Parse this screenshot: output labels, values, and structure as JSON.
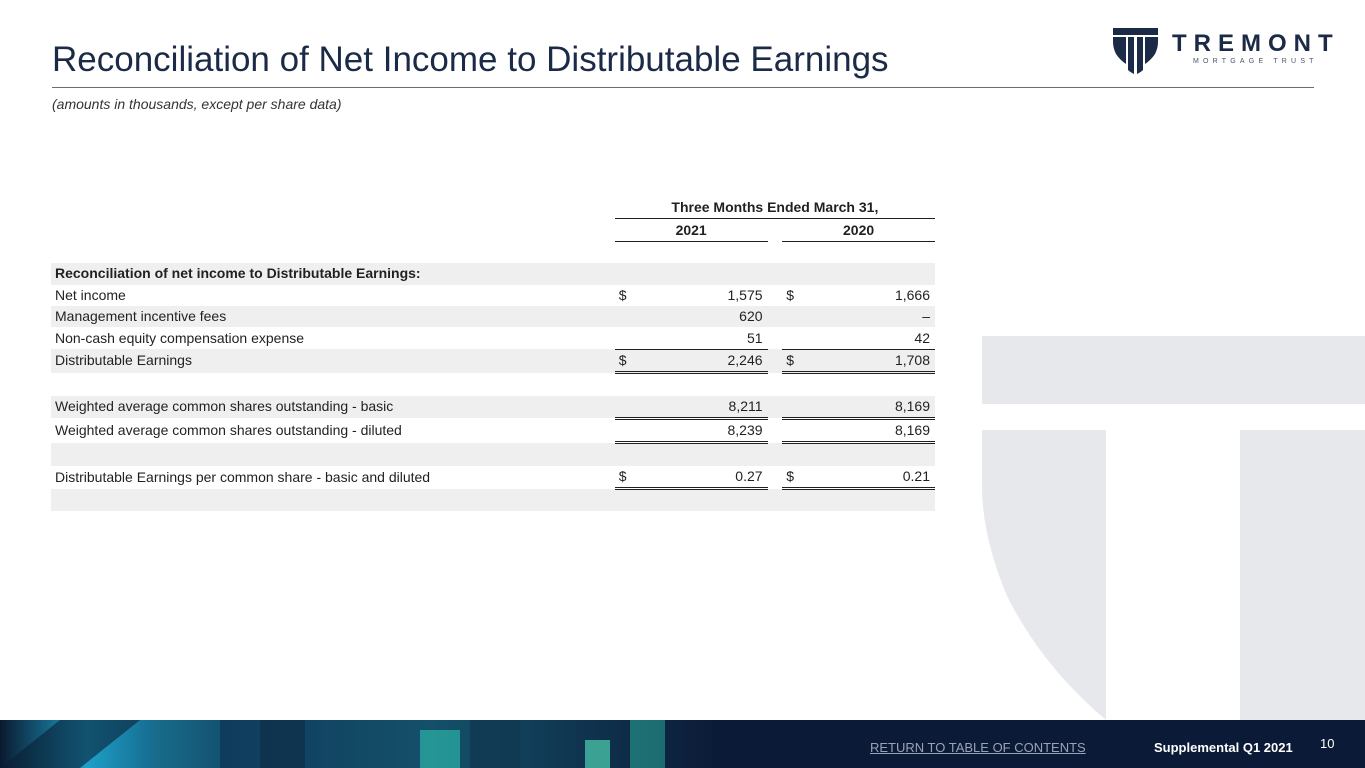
{
  "header": {
    "title": "Reconciliation of Net Income to Distributable Earnings",
    "subtitle": "(amounts in thousands, except per share data)"
  },
  "logo": {
    "name": "TREMONT",
    "tagline": "MORTGAGE TRUST",
    "color": "#1b2a47"
  },
  "table": {
    "period_header": "Three Months Ended March 31,",
    "years": [
      "2021",
      "2020"
    ],
    "section_header": "Reconciliation of net income to Distributable Earnings:",
    "rows": [
      {
        "label": "Net income",
        "cur": "$",
        "v2021": "1,575",
        "v2020": "1,666"
      },
      {
        "label": "Management incentive fees",
        "cur": "",
        "v2021": "620",
        "v2020": "–"
      },
      {
        "label": "Non-cash equity compensation expense",
        "cur": "",
        "v2021": "51",
        "v2020": "42"
      },
      {
        "label": "Distributable Earnings",
        "cur": "$",
        "v2021": "2,246",
        "v2020": "1,708"
      },
      {
        "label": "Weighted average common shares outstanding - basic",
        "cur": "",
        "v2021": "8,211",
        "v2020": "8,169"
      },
      {
        "label": "Weighted average common shares outstanding - diluted",
        "cur": "",
        "v2021": "8,239",
        "v2020": "8,169"
      },
      {
        "label": "Distributable Earnings per common share - basic and diluted",
        "cur": "$",
        "v2021": "0.27",
        "v2020": "0.21"
      }
    ]
  },
  "footer": {
    "link": "RETURN TO TABLE OF CONTENTS",
    "report": "Supplemental Q1 2021",
    "page": "10"
  },
  "colors": {
    "navy": "#1b2a47",
    "row_shade": "#efefef",
    "footer_bg": "#0b1a36",
    "watermark": "#e6e8ec"
  }
}
